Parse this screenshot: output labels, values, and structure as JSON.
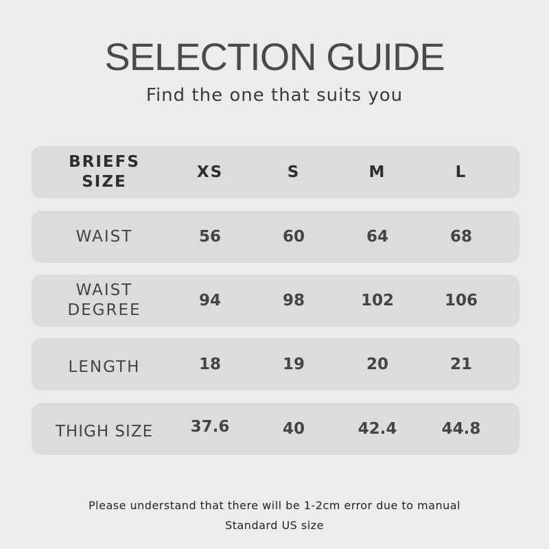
{
  "title": "SELECTION GUIDE",
  "subtitle": "Find the one that suits you",
  "table": {
    "header": [
      "BRIEFS SIZE",
      "XS",
      "S",
      "M",
      "L"
    ],
    "rows": [
      {
        "label": "WAIST",
        "values": [
          "56",
          "60",
          "64",
          "68"
        ]
      },
      {
        "label": "WAIST DEGREE",
        "values": [
          "94",
          "98",
          "102",
          "106"
        ]
      },
      {
        "label": "LENGTH",
        "values": [
          "18",
          "19",
          "20",
          "21"
        ]
      },
      {
        "label": "THIGH SIZE",
        "values": [
          "37.6",
          "40",
          "42.4",
          "44.8"
        ]
      }
    ]
  },
  "notes": [
    "Please understand that there will be 1-2cm error due to manual",
    "Standard US size"
  ],
  "colors": {
    "background": "#ececec",
    "row": "#dcdcdc",
    "text": "#3a3a3a"
  }
}
